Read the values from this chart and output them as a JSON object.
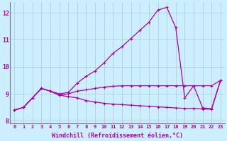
{
  "xlabel": "Windchill (Refroidissement éolien,°C)",
  "background_color": "#cceeff",
  "grid_color": "#aacccc",
  "line_color": "#aa00aa",
  "xlim": [
    -0.5,
    23.5
  ],
  "ylim": [
    7.9,
    12.4
  ],
  "yticks": [
    8,
    9,
    10,
    11,
    12
  ],
  "xticks": [
    0,
    1,
    2,
    3,
    4,
    5,
    6,
    7,
    8,
    9,
    10,
    11,
    12,
    13,
    14,
    15,
    16,
    17,
    18,
    19,
    20,
    21,
    22,
    23
  ],
  "series": [
    [
      8.4,
      8.5,
      8.85,
      9.2,
      9.1,
      9.0,
      9.05,
      9.4,
      9.65,
      9.85,
      10.15,
      10.5,
      10.75,
      11.05,
      11.35,
      11.65,
      12.1,
      12.2,
      11.45,
      8.85,
      9.3,
      8.48,
      8.45,
      9.5
    ],
    [
      8.4,
      8.5,
      8.85,
      9.2,
      9.1,
      8.95,
      9.0,
      9.1,
      9.15,
      9.2,
      9.25,
      9.28,
      9.3,
      9.3,
      9.3,
      9.3,
      9.3,
      9.3,
      9.3,
      9.3,
      9.3,
      9.3,
      9.3,
      9.5
    ],
    [
      8.4,
      8.5,
      8.85,
      9.2,
      9.1,
      8.95,
      8.9,
      8.85,
      8.75,
      8.7,
      8.65,
      8.62,
      8.6,
      8.58,
      8.56,
      8.54,
      8.52,
      8.5,
      8.48,
      8.46,
      8.46,
      8.44,
      8.43,
      9.5
    ]
  ]
}
